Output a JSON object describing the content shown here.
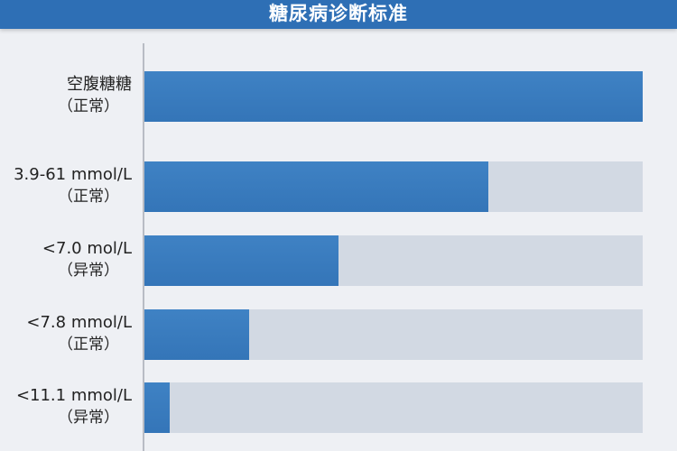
{
  "chart_data": {
    "type": "bar",
    "orientation": "horizontal",
    "title": "糖尿病诊断标准",
    "categories": [
      [
        "空腹糖糖",
        "（正常）"
      ],
      [
        "3.9-61 mmol/L",
        "（正常）"
      ],
      [
        "<7.0 mol/L",
        "（异常）"
      ],
      [
        "<7.8 mmol/L",
        "（正常）"
      ],
      [
        "<11.1 mmol/L",
        "（异常）"
      ]
    ],
    "values": [
      100,
      69,
      39,
      21,
      5
    ],
    "xlim": [
      0,
      100
    ],
    "colors": {
      "fill": "#3a7bbf",
      "track": "#d2d9e3",
      "header": "#2e6fb5"
    }
  }
}
